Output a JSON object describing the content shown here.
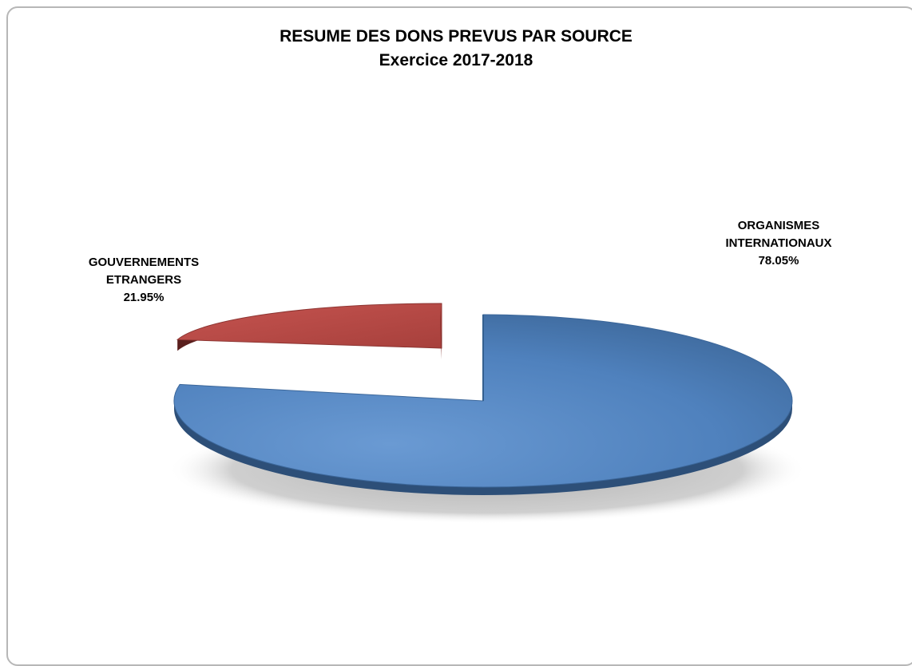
{
  "chart_data": {
    "type": "pie",
    "title": "RESUME DES DONS PREVUS PAR SOURCE",
    "subtitle": "Exercice 2017-2018",
    "slices": [
      {
        "label_line1": "ORGANISMES",
        "label_line2": "INTERNATIONAUX",
        "value_text": "78.05%",
        "value": 78.05,
        "color": "#4f81bd"
      },
      {
        "label_line1": "GOUVERNEMENTS",
        "label_line2": "ETRANGERS",
        "value_text": "21.95%",
        "value": 21.95,
        "color": "#c0504d"
      }
    ]
  }
}
